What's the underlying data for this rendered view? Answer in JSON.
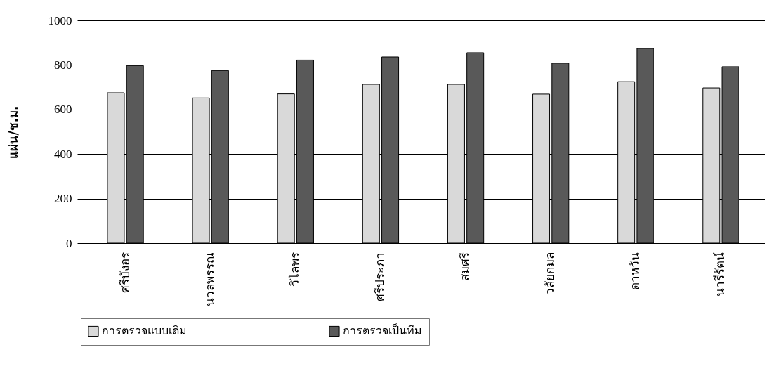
{
  "chart_data": {
    "type": "bar",
    "ylabel": "แผ่น/ช.ม.",
    "categories": [
      "ศรีบังอร",
      "นวลพรรณ",
      "วิไลพร",
      "ศรีประภา",
      "สมศรี",
      "วลัยกมล",
      "ดาหวัน",
      "นารีรัตน์"
    ],
    "series": [
      {
        "name": "การตรวจแบบเดิม",
        "color": "#d9d9d9",
        "values": [
          675,
          652,
          670,
          713,
          713,
          669,
          725,
          697
        ]
      },
      {
        "name": "การตรวจเป็นทีม",
        "color": "#595959",
        "values": [
          797,
          775,
          822,
          836,
          855,
          808,
          874,
          792
        ]
      }
    ],
    "ylim": [
      0,
      1000
    ],
    "yticks": [
      0,
      200,
      400,
      600,
      800,
      1000
    ],
    "grid": "y",
    "legend": "bottom"
  }
}
